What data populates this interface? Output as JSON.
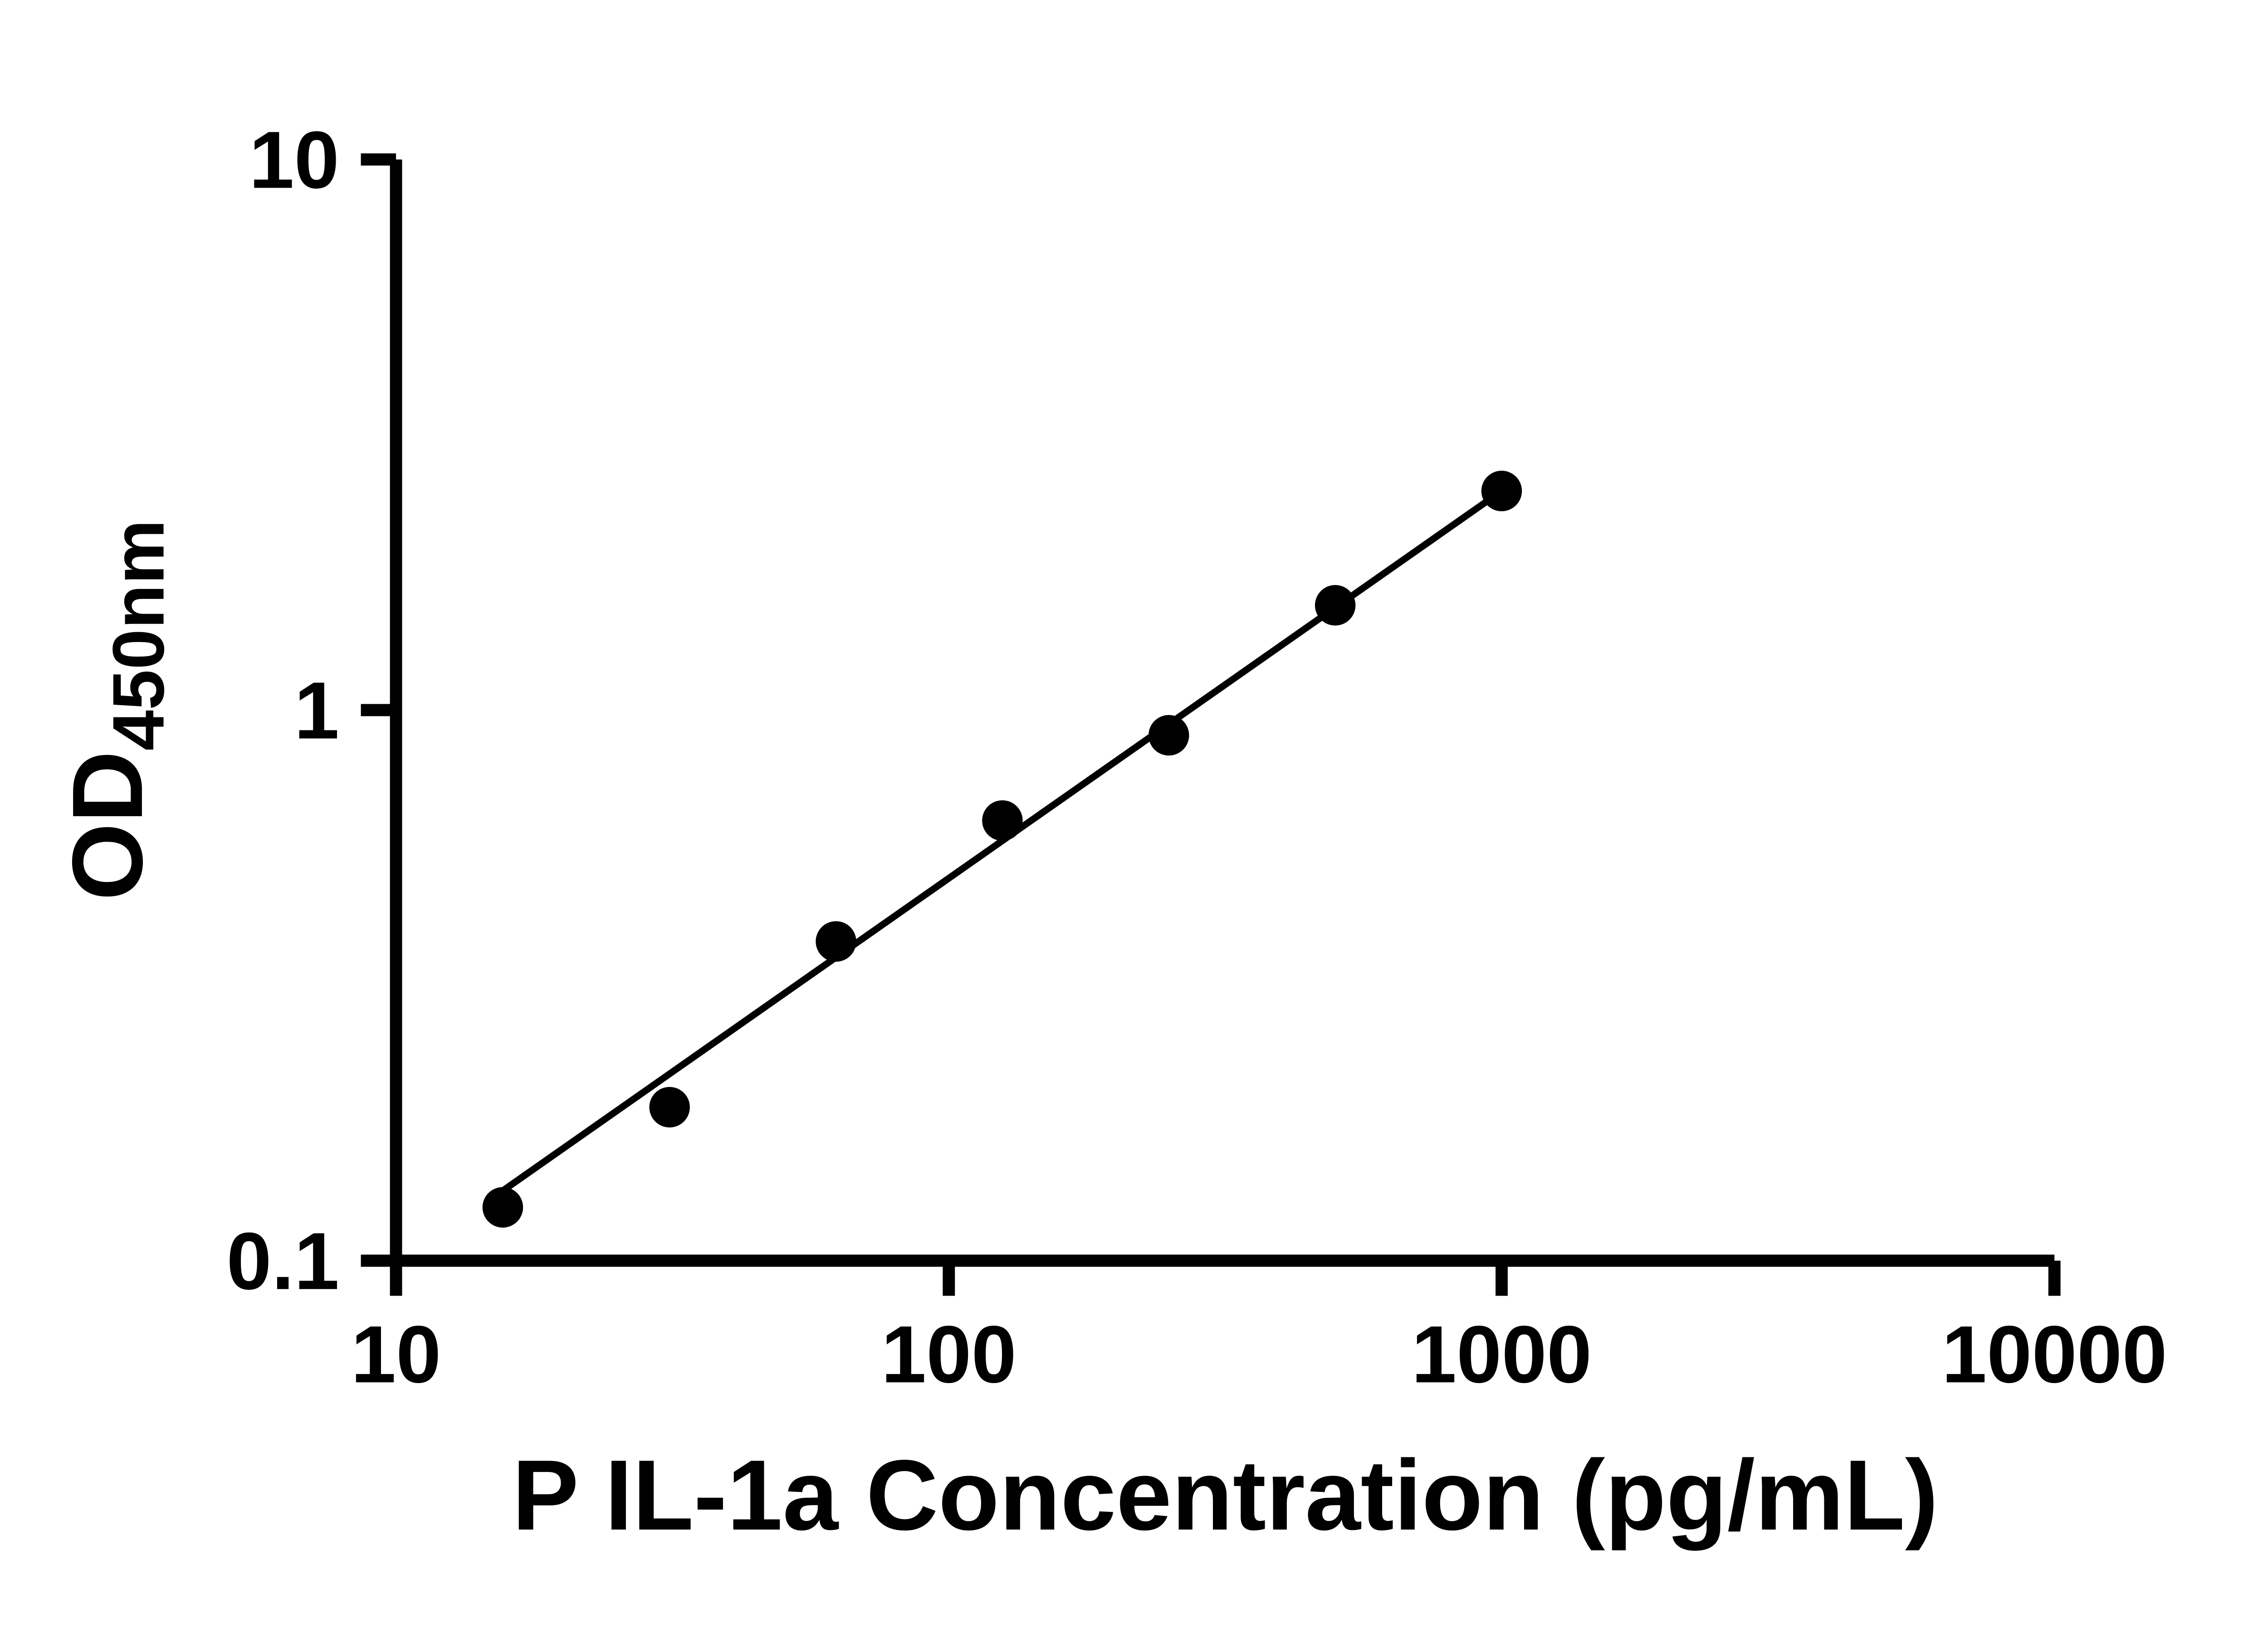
{
  "chart_data": {
    "type": "scatter",
    "title": "",
    "xlabel": "P IL-1a Concentration (pg/mL)",
    "ylabel_main": "OD",
    "ylabel_sub": "450nm",
    "xscale": "log",
    "yscale": "log",
    "xlim": [
      10,
      10000
    ],
    "ylim": [
      0.1,
      10
    ],
    "xticks": [
      10,
      100,
      1000,
      10000
    ],
    "xtick_labels": [
      "10",
      "100",
      "1000",
      "10000"
    ],
    "yticks": [
      0.1,
      1,
      10
    ],
    "ytick_labels": [
      "0.1",
      "1",
      "10"
    ],
    "grid": false,
    "legend": null,
    "x": [
      15.6,
      31.25,
      62.5,
      125,
      250,
      500,
      1000
    ],
    "y": [
      0.125,
      0.19,
      0.38,
      0.63,
      0.9,
      1.55,
      2.5
    ],
    "trendline": {
      "x1": 15.6,
      "y1": 0.134,
      "x2": 1000,
      "y2": 2.5
    },
    "marker_color": "#000000",
    "line_color": "#000000",
    "axis_color": "#000000"
  }
}
